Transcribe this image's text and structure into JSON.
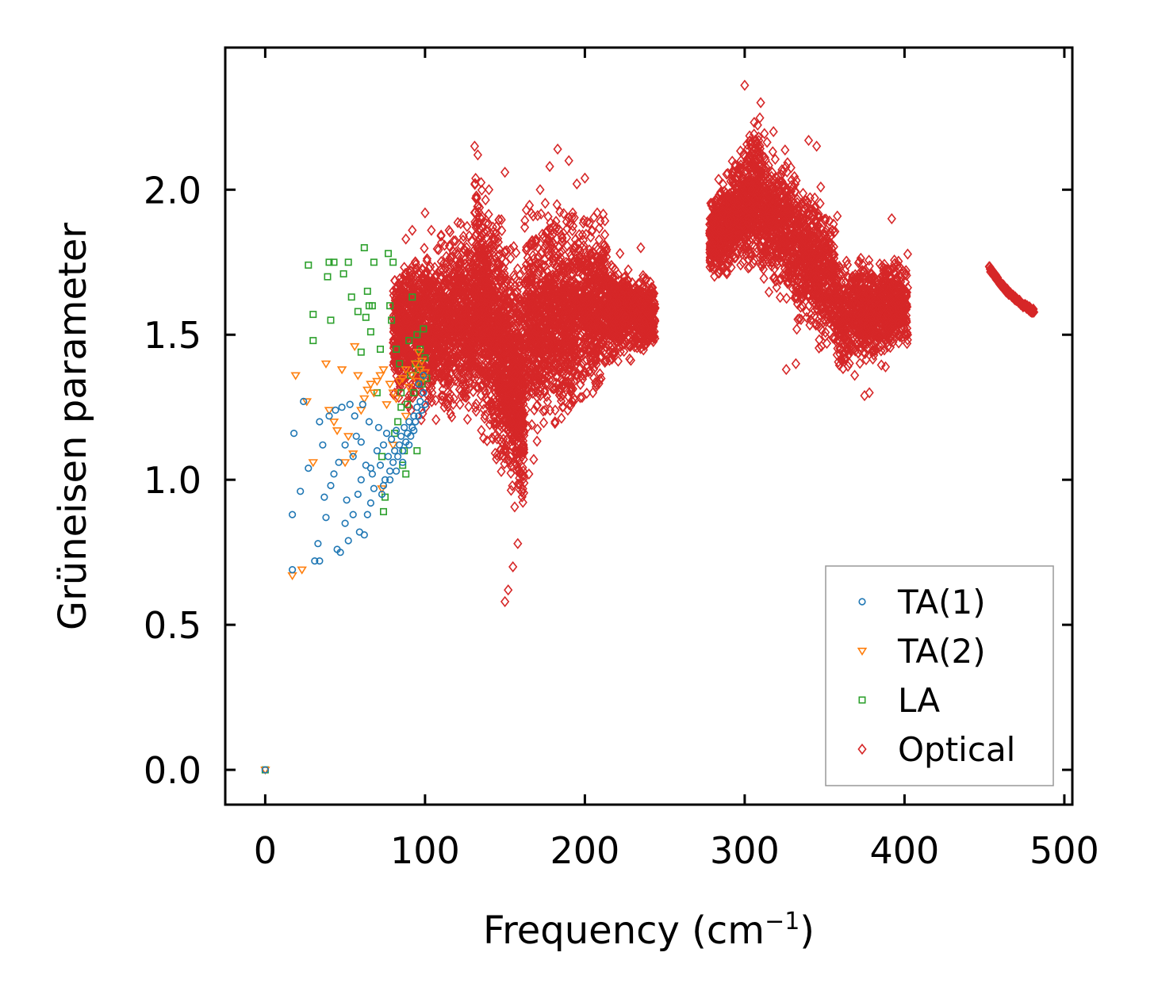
{
  "chart_data": {
    "type": "scatter",
    "xlabel": "Frequency (cm",
    "xlabel_superscript": "−1",
    "xlabel_suffix": ")",
    "ylabel": "Grüneisen parameter",
    "xlim": [
      -25,
      505
    ],
    "ylim": [
      -0.12,
      2.49
    ],
    "x_ticks": [
      0,
      100,
      200,
      300,
      400,
      500
    ],
    "x_tick_labels": [
      "0",
      "100",
      "200",
      "300",
      "400",
      "500"
    ],
    "y_ticks": [
      0.0,
      0.5,
      1.0,
      1.5,
      2.0
    ],
    "y_tick_labels": [
      "0.0",
      "0.5",
      "1.0",
      "1.5",
      "2.0"
    ],
    "grid": false,
    "legend_position": "bottom-right",
    "series": [
      {
        "name": "TA(1)",
        "color": "#1f77b4",
        "marker": "circle",
        "points": [
          [
            0,
            0.0
          ],
          [
            17,
            0.69
          ],
          [
            17,
            0.88
          ],
          [
            18,
            1.16
          ],
          [
            22,
            0.96
          ],
          [
            24,
            1.27
          ],
          [
            27,
            1.04
          ],
          [
            31,
            0.72
          ],
          [
            33,
            0.78
          ],
          [
            34,
            0.72
          ],
          [
            34,
            1.2
          ],
          [
            36,
            1.12
          ],
          [
            37,
            0.94
          ],
          [
            38,
            0.87
          ],
          [
            40,
            1.22
          ],
          [
            41,
            0.98
          ],
          [
            43,
            1.02
          ],
          [
            44,
            1.24
          ],
          [
            45,
            0.76
          ],
          [
            46,
            1.06
          ],
          [
            47,
            0.75
          ],
          [
            48,
            1.25
          ],
          [
            50,
            1.12
          ],
          [
            50,
            0.85
          ],
          [
            51,
            0.93
          ],
          [
            52,
            0.79
          ],
          [
            53,
            1.26
          ],
          [
            55,
            0.88
          ],
          [
            55,
            1.08
          ],
          [
            57,
            1.15
          ],
          [
            58,
            0.95
          ],
          [
            59,
            0.82
          ],
          [
            60,
            1.0
          ],
          [
            61,
            1.26
          ],
          [
            62,
            0.81
          ],
          [
            63,
            1.05
          ],
          [
            64,
            0.88
          ],
          [
            65,
            1.2
          ],
          [
            66,
            0.92
          ],
          [
            67,
            1.02
          ],
          [
            68,
            0.97
          ],
          [
            70,
            1.1
          ],
          [
            71,
            1.18
          ],
          [
            72,
            1.05
          ],
          [
            73,
            0.95
          ],
          [
            74,
            1.12
          ],
          [
            75,
            1.0
          ],
          [
            76,
            1.16
          ],
          [
            77,
            1.08
          ],
          [
            78,
            1.03
          ],
          [
            79,
            1.14
          ],
          [
            80,
            1.06
          ],
          [
            81,
            1.1
          ],
          [
            82,
            1.17
          ],
          [
            83,
            1.08
          ],
          [
            84,
            1.12
          ],
          [
            85,
            1.15
          ],
          [
            86,
            1.1
          ],
          [
            87,
            1.18
          ],
          [
            88,
            1.13
          ],
          [
            89,
            1.16
          ],
          [
            90,
            1.2
          ],
          [
            91,
            1.15
          ],
          [
            92,
            1.18
          ],
          [
            93,
            1.22
          ],
          [
            94,
            1.2
          ],
          [
            95,
            1.25
          ],
          [
            96,
            1.22
          ],
          [
            97,
            1.27
          ],
          [
            98,
            1.24
          ],
          [
            99,
            1.3
          ],
          [
            99,
            1.36
          ],
          [
            100,
            1.26
          ],
          [
            96,
            1.33
          ],
          [
            93,
            1.17
          ],
          [
            90,
            1.12
          ],
          [
            86,
            1.06
          ],
          [
            82,
            1.03
          ],
          [
            78,
            1.0
          ],
          [
            74,
            0.98
          ],
          [
            66,
            1.04
          ],
          [
            60,
            1.13
          ],
          [
            56,
            1.22
          ]
        ]
      },
      {
        "name": "TA(2)",
        "color": "#ff7f0e",
        "marker": "triangle-down",
        "points": [
          [
            0,
            0.0
          ],
          [
            17,
            0.67
          ],
          [
            19,
            1.36
          ],
          [
            23,
            0.69
          ],
          [
            26,
            1.27
          ],
          [
            30,
            1.06
          ],
          [
            38,
            1.4
          ],
          [
            40,
            1.24
          ],
          [
            43,
            1.2
          ],
          [
            45,
            1.17
          ],
          [
            48,
            1.38
          ],
          [
            50,
            1.06
          ],
          [
            52,
            1.15
          ],
          [
            55,
            1.09
          ],
          [
            56,
            1.46
          ],
          [
            58,
            1.36
          ],
          [
            60,
            1.24
          ],
          [
            62,
            1.28
          ],
          [
            64,
            1.31
          ],
          [
            66,
            1.33
          ],
          [
            68,
            1.3
          ],
          [
            70,
            1.34
          ],
          [
            72,
            1.36
          ],
          [
            73,
            0.97
          ],
          [
            74,
            1.38
          ],
          [
            76,
            1.26
          ],
          [
            78,
            1.33
          ],
          [
            80,
            1.3
          ],
          [
            82,
            1.28
          ],
          [
            84,
            1.34
          ],
          [
            86,
            1.35
          ],
          [
            88,
            1.38
          ],
          [
            90,
            1.32
          ],
          [
            92,
            1.36
          ],
          [
            94,
            1.4
          ],
          [
            95,
            1.34
          ],
          [
            96,
            1.44
          ],
          [
            97,
            1.38
          ],
          [
            98,
            1.41
          ],
          [
            99,
            1.35
          ],
          [
            100,
            1.37
          ],
          [
            88,
            1.22
          ],
          [
            80,
            1.12
          ]
        ]
      },
      {
        "name": "LA",
        "color": "#2ca02c",
        "marker": "square",
        "points": [
          [
            0,
            0.0
          ],
          [
            27,
            1.74
          ],
          [
            30,
            1.57
          ],
          [
            30,
            1.48
          ],
          [
            39,
            1.7
          ],
          [
            40,
            1.75
          ],
          [
            41,
            1.55
          ],
          [
            43,
            1.75
          ],
          [
            49,
            1.71
          ],
          [
            52,
            1.75
          ],
          [
            54,
            1.63
          ],
          [
            58,
            1.58
          ],
          [
            60,
            1.44
          ],
          [
            62,
            1.8
          ],
          [
            63,
            1.56
          ],
          [
            64,
            1.65
          ],
          [
            66,
            1.51
          ],
          [
            67,
            1.6
          ],
          [
            68,
            1.75
          ],
          [
            70,
            1.3
          ],
          [
            72,
            1.45
          ],
          [
            73,
            1.08
          ],
          [
            74,
            0.89
          ],
          [
            75,
            0.94
          ],
          [
            77,
            1.78
          ],
          [
            78,
            1.6
          ],
          [
            79,
            1.55
          ],
          [
            80,
            1.75
          ],
          [
            81,
            1.16
          ],
          [
            82,
            1.45
          ],
          [
            83,
            1.2
          ],
          [
            84,
            1.4
          ],
          [
            85,
            1.3
          ],
          [
            86,
            1.05
          ],
          [
            87,
            1.1
          ],
          [
            88,
            1.02
          ],
          [
            89,
            1.26
          ],
          [
            90,
            1.48
          ],
          [
            91,
            1.36
          ],
          [
            92,
            1.63
          ],
          [
            93,
            1.3
          ],
          [
            94,
            1.4
          ],
          [
            95,
            1.5
          ],
          [
            96,
            1.38
          ],
          [
            97,
            1.45
          ],
          [
            98,
            1.33
          ],
          [
            99,
            1.52
          ],
          [
            100,
            1.42
          ],
          [
            101,
            1.35
          ],
          [
            95,
            1.1
          ],
          [
            85,
            1.25
          ],
          [
            65,
            1.6
          ]
        ]
      },
      {
        "name": "Optical",
        "color": "#d62728",
        "marker": "diamond",
        "segments": [
          {
            "x": [
              80,
              131
            ],
            "center": [
              1.5,
              1.56
            ],
            "spread": [
              0.3,
              0.42
            ],
            "n": 1500
          },
          {
            "x": [
              131,
              162
            ],
            "center": [
              1.66,
              1.26
            ],
            "spread": [
              0.5,
              0.52
            ],
            "n": 1300
          },
          {
            "x": [
              162,
              214
            ],
            "center": [
              1.53,
              1.62
            ],
            "spread": [
              0.48,
              0.36
            ],
            "n": 1500
          },
          {
            "x": [
              214,
              244
            ],
            "center": [
              1.58,
              1.56
            ],
            "spread": [
              0.22,
              0.14
            ],
            "n": 700
          },
          {
            "x": [
              278,
              310
            ],
            "center": [
              1.83,
              2.0
            ],
            "spread": [
              0.16,
              0.32
            ],
            "n": 900
          },
          {
            "x": [
              310,
              358
            ],
            "center": [
              1.95,
              1.66
            ],
            "spread": [
              0.32,
              0.3
            ],
            "n": 1100
          },
          {
            "x": [
              358,
              402
            ],
            "center": [
              1.55,
              1.61
            ],
            "spread": [
              0.25,
              0.2
            ],
            "n": 900
          }
        ],
        "line_segment": {
          "x": [
            453,
            481
          ],
          "y": [
            1.73,
            1.58
          ],
          "n": 140
        },
        "outliers": [
          [
            131,
            2.15
          ],
          [
            133,
            2.12
          ],
          [
            128,
            1.77
          ],
          [
            140,
            2.0
          ],
          [
            150,
            0.58
          ],
          [
            152,
            0.62
          ],
          [
            155,
            0.7
          ],
          [
            158,
            0.78
          ],
          [
            183,
            2.14
          ],
          [
            190,
            2.1
          ],
          [
            195,
            2.02
          ],
          [
            222,
            1.78
          ],
          [
            235,
            1.8
          ],
          [
            241,
            1.5
          ],
          [
            290,
            1.76
          ],
          [
            300,
            2.36
          ],
          [
            310,
            2.3
          ],
          [
            318,
            2.2
          ],
          [
            326,
            1.38
          ],
          [
            332,
            1.4
          ],
          [
            340,
            2.17
          ],
          [
            345,
            2.15
          ],
          [
            355,
            1.86
          ],
          [
            365,
            1.65
          ],
          [
            375,
            1.29
          ],
          [
            378,
            1.3
          ],
          [
            392,
            1.9
          ],
          [
            396,
            1.5
          ],
          [
            400,
            1.5
          ],
          [
            402,
            1.5
          ],
          [
            112,
            1.25
          ],
          [
            118,
            1.28
          ],
          [
            124,
            1.3
          ],
          [
            110,
            1.84
          ],
          [
            115,
            1.86
          ],
          [
            100,
            1.92
          ],
          [
            92,
            1.86
          ],
          [
            85,
            1.62
          ],
          [
            88,
            1.83
          ],
          [
            104,
            1.86
          ],
          [
            150,
            2.06
          ],
          [
            172,
            2.0
          ],
          [
            178,
            2.08
          ],
          [
            200,
            2.04
          ],
          [
            205,
            1.3
          ],
          [
            207,
            1.32
          ],
          [
            218,
            1.43
          ],
          [
            146,
            1.55
          ],
          [
            165,
            1.02
          ],
          [
            168,
            1.07
          ]
        ]
      }
    ]
  }
}
